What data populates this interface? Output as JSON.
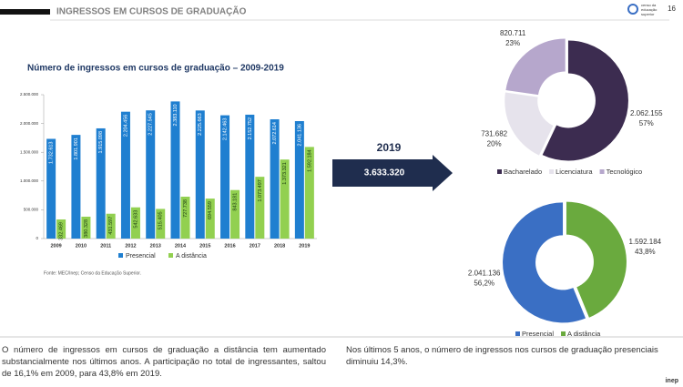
{
  "header": {
    "title": "INGRESSOS EM CURSOS DE GRADUAÇÃO",
    "page": "16",
    "logo": [
      "censo da",
      "educação",
      "superior"
    ]
  },
  "highlight": {
    "year": "2019",
    "total": "3.633.320"
  },
  "chart_data": [
    {
      "type": "bar",
      "title": "Número de ingressos em cursos de graduação – 2009-2019",
      "categories": [
        "2009",
        "2010",
        "2011",
        "2012",
        "2013",
        "2014",
        "2015",
        "2016",
        "2017",
        "2018",
        "2019"
      ],
      "series": [
        {
          "name": "Presencial",
          "color": "#1f7fd0",
          "values": [
            1732613,
            1801901,
            1915098,
            2204456,
            2227545,
            2383110,
            2225663,
            2142463,
            2152752,
            2072614,
            2041136
          ],
          "value_labels": [
            "1.732.613",
            "1.801.901",
            "1.915.098",
            "2.204.456",
            "2.227.545",
            "2.383.110",
            "2.225.663",
            "2.142.463",
            "2.152.752",
            "2.072.614",
            "2.041.136"
          ]
        },
        {
          "name": "A distância",
          "color": "#92d050",
          "values": [
            332469,
            380328,
            431597,
            542633,
            515405,
            727738,
            694559,
            843181,
            1073497,
            1373321,
            1592184
          ],
          "value_labels": [
            "332.469",
            "380.328",
            "431.597",
            "542.633",
            "515.405",
            "727.738",
            "694.559",
            "843.181",
            "1.073.497",
            "1.373.321",
            "1.592.184"
          ]
        }
      ],
      "ylim": [
        0,
        2500000
      ],
      "yticks": [
        0,
        {
          "value": 500000,
          "label": "500.000"
        },
        {
          "value": 1000000,
          "label": "1.000.000"
        },
        {
          "value": 1500000,
          "label": "1.500.000"
        },
        {
          "value": 2000000,
          "label": "2.000.000"
        },
        {
          "value": 2500000,
          "label": "2.500.000"
        }
      ],
      "source": "Fonte: MEC/Inep; Censo da Educação Superior."
    },
    {
      "type": "donut",
      "clockwise": true,
      "categories": [
        "Bacharelado",
        "Licenciatura",
        "Tecnológico"
      ],
      "colors": [
        "#3c2c50",
        "#e6e3ec",
        "#b6a7cc"
      ],
      "values": [
        2062155,
        731682,
        820711
      ],
      "value_labels": [
        "2.062.155",
        "731.682",
        "820.711"
      ],
      "percent_labels": [
        "57%",
        "20%",
        "23%"
      ]
    },
    {
      "type": "donut",
      "clockwise": false,
      "categories": [
        "Presencial",
        "A distância"
      ],
      "colors": [
        "#3a6fc4",
        "#6aaa3e"
      ],
      "values": [
        2041136,
        1592184
      ],
      "value_labels": [
        "2.041.136",
        "1.592.184"
      ],
      "percent_labels": [
        "56,2%",
        "43,8%"
      ]
    }
  ],
  "notes": [
    "O número de ingressos em cursos de graduação a distância tem aumentado substancialmente nos últimos anos. A participação no total de ingressantes, saltou de 16,1% em 2009, para 43,8% em 2019.",
    "Nos últimos 5 anos, o número de ingressos nos cursos de graduação presenciais diminuiu 14,3%."
  ],
  "footer": "inep"
}
